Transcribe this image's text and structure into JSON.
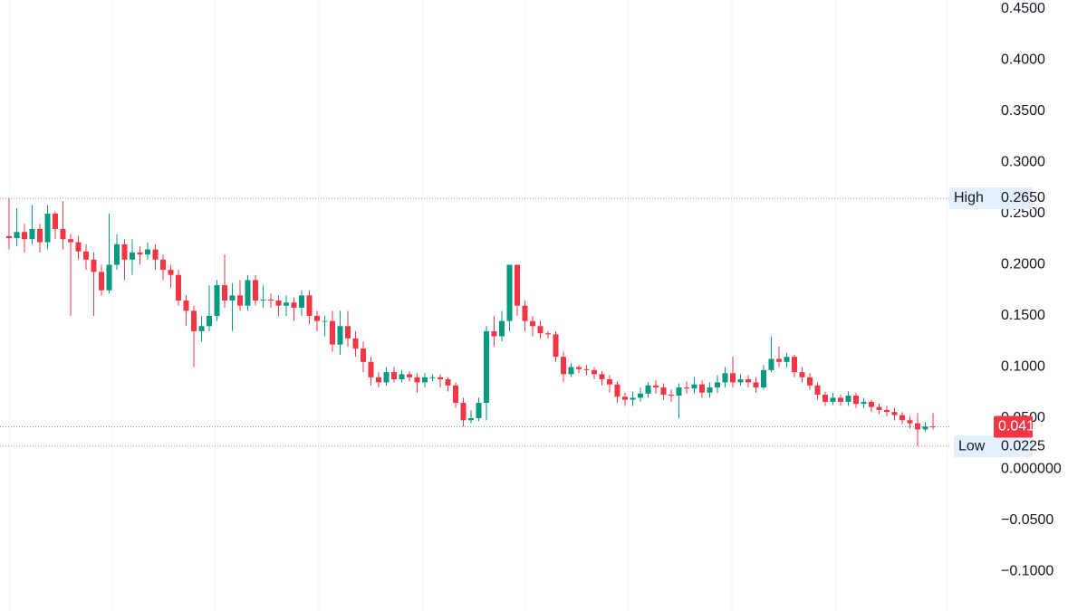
{
  "chart_data": {
    "type": "candlestick",
    "open": [
      0.228,
      0.226,
      0.232,
      0.225,
      0.235,
      0.222,
      0.25,
      0.235,
      0.225,
      0.222,
      0.213,
      0.205,
      0.193,
      0.175,
      0.2,
      0.22,
      0.205,
      0.212,
      0.21,
      0.215,
      0.205,
      0.195,
      0.19,
      0.165,
      0.155,
      0.135,
      0.14,
      0.15,
      0.18,
      0.165,
      0.17,
      0.16,
      0.185,
      0.165,
      0.166,
      0.165,
      0.16,
      0.163,
      0.158,
      0.17,
      0.15,
      0.145,
      0.145,
      0.122,
      0.14,
      0.128,
      0.118,
      0.105,
      0.09,
      0.085,
      0.095,
      0.088,
      0.093,
      0.09,
      0.085,
      0.09,
      0.09,
      0.088,
      0.082,
      0.065,
      0.048,
      0.05,
      0.065,
      0.135,
      0.13,
      0.145,
      0.2,
      0.16,
      0.145,
      0.14,
      0.133,
      0.132,
      0.11,
      0.093,
      0.1,
      0.098,
      0.097,
      0.093,
      0.088,
      0.083,
      0.071,
      0.068,
      0.07,
      0.074,
      0.082,
      0.08,
      0.073,
      0.072,
      0.08,
      0.079,
      0.083,
      0.075,
      0.08,
      0.085,
      0.094,
      0.085,
      0.088,
      0.085,
      0.08,
      0.097,
      0.108,
      0.105,
      0.11,
      0.095,
      0.09,
      0.082,
      0.073,
      0.066,
      0.07,
      0.066,
      0.072,
      0.064,
      0.066,
      0.061,
      0.058,
      0.056,
      0.053,
      0.048,
      0.045,
      0.039,
      0.042
    ],
    "high": [
      0.265,
      0.255,
      0.24,
      0.258,
      0.24,
      0.258,
      0.252,
      0.262,
      0.23,
      0.228,
      0.22,
      0.212,
      0.2,
      0.25,
      0.23,
      0.225,
      0.225,
      0.218,
      0.222,
      0.22,
      0.21,
      0.2,
      0.195,
      0.17,
      0.16,
      0.15,
      0.18,
      0.185,
      0.21,
      0.182,
      0.185,
      0.19,
      0.19,
      0.18,
      0.172,
      0.17,
      0.17,
      0.168,
      0.175,
      0.175,
      0.155,
      0.15,
      0.155,
      0.155,
      0.155,
      0.135,
      0.125,
      0.11,
      0.095,
      0.1,
      0.1,
      0.097,
      0.096,
      0.094,
      0.094,
      0.093,
      0.093,
      0.09,
      0.085,
      0.07,
      0.058,
      0.07,
      0.14,
      0.15,
      0.155,
      0.2,
      0.2,
      0.165,
      0.15,
      0.145,
      0.135,
      0.135,
      0.115,
      0.104,
      0.102,
      0.102,
      0.1,
      0.096,
      0.092,
      0.086,
      0.075,
      0.076,
      0.08,
      0.085,
      0.087,
      0.084,
      0.078,
      0.084,
      0.086,
      0.09,
      0.087,
      0.085,
      0.092,
      0.1,
      0.11,
      0.093,
      0.092,
      0.09,
      0.102,
      0.13,
      0.12,
      0.114,
      0.112,
      0.1,
      0.094,
      0.085,
      0.076,
      0.075,
      0.073,
      0.076,
      0.075,
      0.07,
      0.068,
      0.064,
      0.062,
      0.06,
      0.056,
      0.052,
      0.055,
      0.046,
      0.055
    ],
    "low": [
      0.215,
      0.218,
      0.212,
      0.22,
      0.212,
      0.215,
      0.225,
      0.215,
      0.15,
      0.205,
      0.195,
      0.15,
      0.17,
      0.172,
      0.195,
      0.185,
      0.19,
      0.2,
      0.205,
      0.195,
      0.185,
      0.178,
      0.16,
      0.14,
      0.1,
      0.125,
      0.135,
      0.145,
      0.158,
      0.135,
      0.155,
      0.155,
      0.16,
      0.158,
      0.158,
      0.15,
      0.15,
      0.145,
      0.15,
      0.142,
      0.135,
      0.13,
      0.115,
      0.112,
      0.12,
      0.11,
      0.095,
      0.082,
      0.08,
      0.082,
      0.085,
      0.085,
      0.086,
      0.075,
      0.08,
      0.086,
      0.08,
      0.076,
      0.06,
      0.042,
      0.045,
      0.047,
      0.048,
      0.12,
      0.125,
      0.135,
      0.15,
      0.135,
      0.13,
      0.128,
      0.128,
      0.105,
      0.085,
      0.09,
      0.094,
      0.092,
      0.088,
      0.082,
      0.075,
      0.065,
      0.062,
      0.062,
      0.066,
      0.07,
      0.074,
      0.068,
      0.066,
      0.05,
      0.074,
      0.074,
      0.07,
      0.07,
      0.075,
      0.08,
      0.08,
      0.082,
      0.08,
      0.075,
      0.078,
      0.095,
      0.1,
      0.1,
      0.09,
      0.085,
      0.078,
      0.068,
      0.062,
      0.063,
      0.062,
      0.062,
      0.06,
      0.06,
      0.056,
      0.054,
      0.052,
      0.048,
      0.044,
      0.04,
      0.0225,
      0.037,
      0.039
    ],
    "close": [
      0.226,
      0.232,
      0.225,
      0.235,
      0.222,
      0.25,
      0.235,
      0.225,
      0.222,
      0.213,
      0.205,
      0.193,
      0.175,
      0.2,
      0.22,
      0.205,
      0.212,
      0.21,
      0.215,
      0.205,
      0.195,
      0.19,
      0.165,
      0.155,
      0.135,
      0.14,
      0.15,
      0.18,
      0.165,
      0.17,
      0.16,
      0.185,
      0.165,
      0.166,
      0.165,
      0.16,
      0.163,
      0.158,
      0.17,
      0.15,
      0.145,
      0.145,
      0.122,
      0.14,
      0.128,
      0.118,
      0.105,
      0.09,
      0.085,
      0.095,
      0.088,
      0.093,
      0.09,
      0.085,
      0.09,
      0.09,
      0.088,
      0.082,
      0.065,
      0.048,
      0.05,
      0.065,
      0.135,
      0.13,
      0.145,
      0.2,
      0.16,
      0.145,
      0.14,
      0.133,
      0.132,
      0.11,
      0.093,
      0.1,
      0.098,
      0.097,
      0.093,
      0.088,
      0.083,
      0.071,
      0.068,
      0.07,
      0.074,
      0.082,
      0.08,
      0.073,
      0.072,
      0.08,
      0.079,
      0.083,
      0.075,
      0.08,
      0.085,
      0.094,
      0.085,
      0.088,
      0.085,
      0.08,
      0.097,
      0.108,
      0.105,
      0.11,
      0.095,
      0.09,
      0.082,
      0.073,
      0.066,
      0.07,
      0.066,
      0.072,
      0.064,
      0.066,
      0.061,
      0.058,
      0.056,
      0.053,
      0.048,
      0.045,
      0.039,
      0.042,
      0.0416
    ],
    "up_color": "#089981",
    "down_color": "#f23645",
    "ylim": [
      -0.1385,
      0.4588
    ],
    "yticks": [
      {
        "value": 0.45,
        "label": "0.4500"
      },
      {
        "value": 0.4,
        "label": "0.4000"
      },
      {
        "value": 0.35,
        "label": "0.3500"
      },
      {
        "value": 0.3,
        "label": "0.3000"
      },
      {
        "value": 0.25,
        "label": "0.2500"
      },
      {
        "value": 0.2,
        "label": "0.2000"
      },
      {
        "value": 0.15,
        "label": "0.1500"
      },
      {
        "value": 0.1,
        "label": "0.1000"
      },
      {
        "value": 0.05,
        "label": "0.0500"
      },
      {
        "value": 0,
        "label": "0.000000"
      },
      {
        "value": -0.05,
        "label": "−0.0500"
      },
      {
        "value": -0.1,
        "label": "−0.1000"
      }
    ],
    "grid": false,
    "high_marker": {
      "name": "High",
      "value": 0.265,
      "value_label": "0.2650"
    },
    "low_marker": {
      "name": "Low",
      "value": 0.0225
    }
  }
}
